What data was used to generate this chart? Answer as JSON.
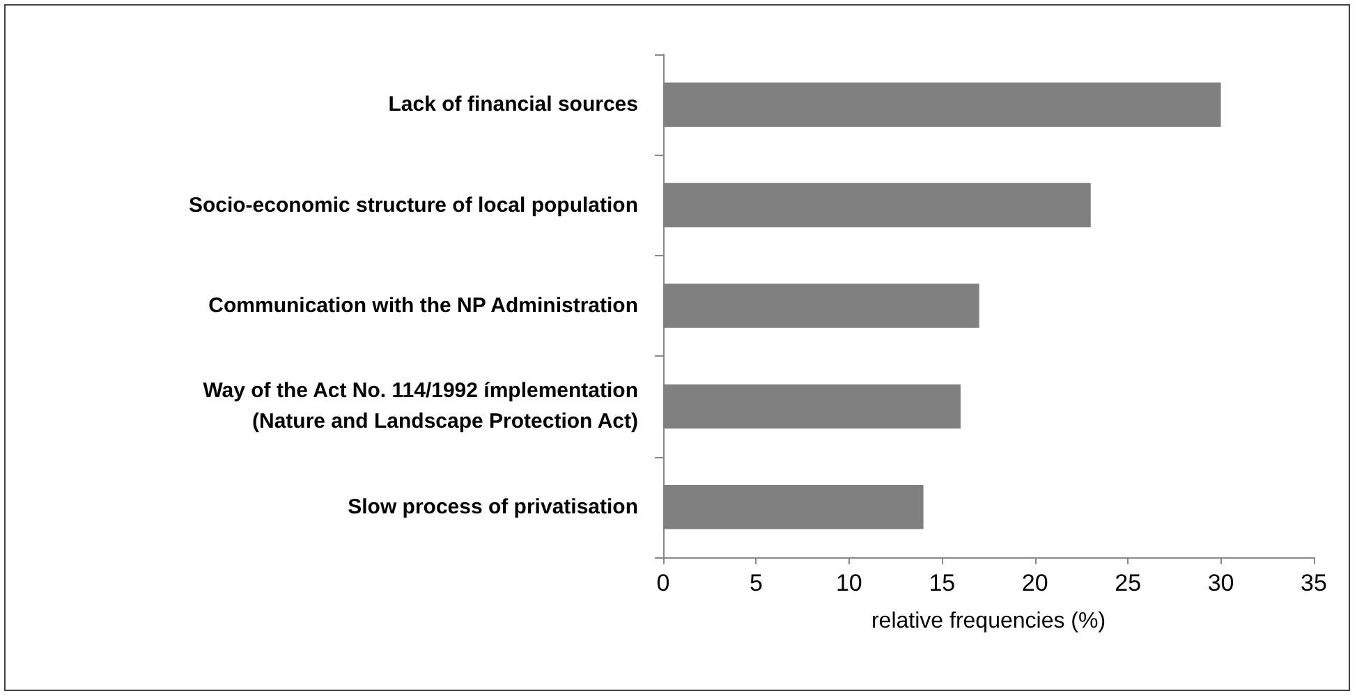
{
  "chart_data": {
    "type": "bar",
    "orientation": "horizontal",
    "xlabel": "relative frequencies (%)",
    "categories": [
      "Lack of financial sources",
      "Socio-economic structure of local population",
      "Communication with the NP Administration",
      "Way of the Act No. 114/1992 ímplementation\n(Nature and Landscape Protection Act)",
      "Slow process of privatisation"
    ],
    "values": [
      30,
      23,
      17,
      16,
      14
    ],
    "color": "#808080",
    "xlim": [
      0,
      35
    ],
    "xticks": [
      0,
      5,
      10,
      15,
      20,
      25,
      30,
      35
    ],
    "grid": false
  }
}
